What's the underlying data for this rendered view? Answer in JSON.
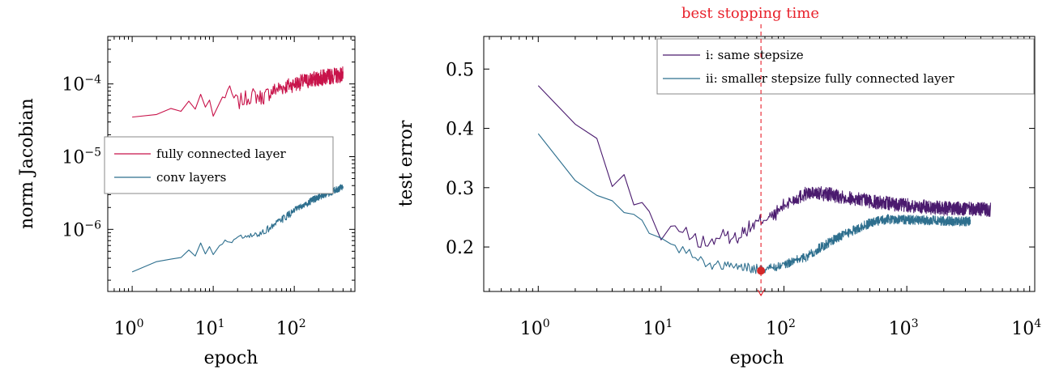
{
  "chart_data": [
    {
      "type": "line",
      "xlabel": "epoch",
      "ylabel": "norm Jacobian",
      "xscale": "log",
      "yscale": "log",
      "xlim": [
        0.5,
        560
      ],
      "ylim": [
        1.4e-07,
        0.00045
      ],
      "xticks": [
        {
          "base": "10",
          "exp": "0"
        },
        {
          "base": "10",
          "exp": "1"
        },
        {
          "base": "10",
          "exp": "2"
        }
      ],
      "yticks": [
        {
          "base": "10",
          "exp": "−4"
        },
        {
          "base": "10",
          "exp": "−5"
        },
        {
          "base": "10",
          "exp": "−6"
        }
      ],
      "grid": false,
      "legend_position": "center-left",
      "series": [
        {
          "name": "fully connected layer",
          "color": "#c8134a",
          "x_range": [
            1,
            400
          ],
          "anchor_epochs": [
            1,
            2,
            3,
            4,
            5,
            6,
            7,
            8,
            9,
            10,
            12,
            15,
            20,
            30,
            40,
            60,
            100,
            200,
            400
          ],
          "anchor_values": [
            3.5e-05,
            3.8e-05,
            4.6e-05,
            4.2e-05,
            5.8e-05,
            4.5e-05,
            7.2e-05,
            4.8e-05,
            6e-05,
            3.6e-05,
            5.5e-05,
            8e-05,
            5.5e-05,
            7e-05,
            6.5e-05,
            8.5e-05,
            0.0001,
            0.00012,
            0.000135
          ],
          "noise_log10": 0.11
        },
        {
          "name": "conv layers",
          "color": "#2e6f8e",
          "x_range": [
            1,
            400
          ],
          "anchor_epochs": [
            1,
            2,
            3,
            4,
            5,
            6,
            7,
            8,
            9,
            10,
            12,
            15,
            20,
            30,
            40,
            60,
            100,
            200,
            400
          ],
          "anchor_values": [
            2.6e-07,
            3.6e-07,
            3.9e-07,
            4.1e-07,
            5.2e-07,
            4.3e-07,
            6.5e-07,
            4.6e-07,
            5.8e-07,
            4.5e-07,
            6e-07,
            6.8e-07,
            7.5e-07,
            8e-07,
            9e-07,
            1.2e-06,
            1.8e-06,
            2.8e-06,
            3.8e-06
          ],
          "noise_log10": 0.05
        }
      ]
    },
    {
      "type": "line",
      "xlabel": "epoch",
      "ylabel": "test error",
      "xscale": "log",
      "xlim": [
        0.36,
        11000
      ],
      "ylim": [
        0.125,
        0.555
      ],
      "xticks": [
        {
          "base": "10",
          "exp": "0"
        },
        {
          "base": "10",
          "exp": "1"
        },
        {
          "base": "10",
          "exp": "2"
        },
        {
          "base": "10",
          "exp": "3"
        },
        {
          "base": "10",
          "exp": "4"
        }
      ],
      "yticks": [
        0.5,
        0.4,
        0.3,
        0.2
      ],
      "grid": false,
      "legend_position": "top-right",
      "series": [
        {
          "name": "i: same stepsize",
          "color": "#4a1a6e",
          "x_range": [
            1,
            4800
          ],
          "anchor_epochs": [
            1,
            2,
            3,
            4,
            5,
            6,
            7,
            8,
            10,
            12,
            15,
            20,
            25,
            30,
            40,
            50,
            60,
            70,
            80,
            100,
            120,
            150,
            200,
            300,
            500,
            1000,
            2000,
            4800
          ],
          "anchor_values": [
            0.472,
            0.407,
            0.383,
            0.302,
            0.322,
            0.271,
            0.275,
            0.26,
            0.212,
            0.235,
            0.225,
            0.21,
            0.205,
            0.22,
            0.215,
            0.23,
            0.24,
            0.25,
            0.25,
            0.27,
            0.28,
            0.29,
            0.29,
            0.285,
            0.277,
            0.27,
            0.265,
            0.263
          ],
          "noise": 0.012
        },
        {
          "name": "ii: smaller stepsize fully connected layer",
          "color": "#2e6f8e",
          "x_range": [
            1,
            3300
          ],
          "anchor_epochs": [
            1,
            2,
            3,
            4,
            5,
            6,
            7,
            8,
            10,
            12,
            15,
            20,
            25,
            30,
            40,
            50,
            60,
            70,
            80,
            100,
            150,
            200,
            300,
            500,
            700,
            1000,
            2000,
            3300
          ],
          "anchor_values": [
            0.391,
            0.312,
            0.287,
            0.278,
            0.258,
            0.255,
            0.245,
            0.223,
            0.215,
            0.205,
            0.195,
            0.18,
            0.17,
            0.17,
            0.168,
            0.165,
            0.163,
            0.163,
            0.165,
            0.17,
            0.183,
            0.2,
            0.22,
            0.24,
            0.247,
            0.246,
            0.244,
            0.243
          ],
          "noise": 0.008
        }
      ],
      "annotations": [
        {
          "text": "best stopping time",
          "x": 65,
          "color": "#e8202a",
          "style": "dashed vertical line with arrow"
        },
        {
          "marker": "dot",
          "x": 65,
          "y": 0.16,
          "color": "#d42a2a"
        }
      ]
    }
  ]
}
